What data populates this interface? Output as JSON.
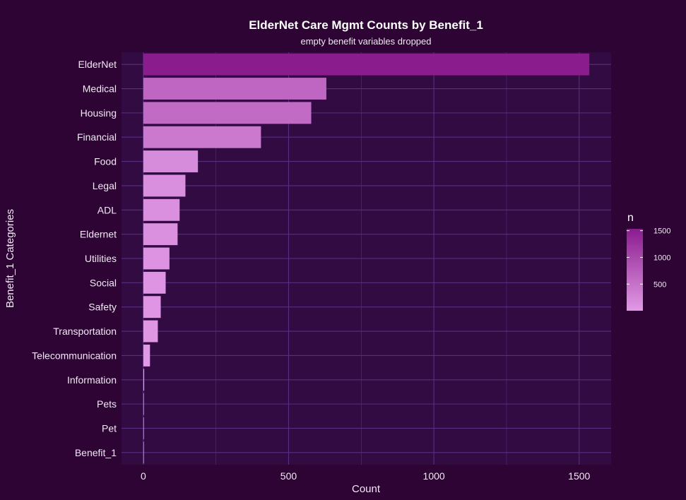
{
  "chart_data": {
    "type": "bar",
    "orientation": "horizontal",
    "title": "ElderNet Care Mgmt Counts by Benefit_1",
    "subtitle": "empty benefit variables dropped",
    "xlabel": "Count",
    "ylabel": "Benefit_1 Categories",
    "categories": [
      "ElderNet",
      "Medical",
      "Housing",
      "Financial",
      "Food",
      "Legal",
      "ADL",
      "Eldernet",
      "Utilities",
      "Social",
      "Safety",
      "Transportation",
      "Telecommunication",
      "Information",
      "Pets",
      "Pet",
      "Benefit_1"
    ],
    "values": [
      1535,
      630,
      578,
      405,
      188,
      145,
      125,
      118,
      90,
      77,
      60,
      50,
      23,
      3,
      2,
      2,
      1
    ],
    "xlim": [
      -75,
      1610
    ],
    "x_ticks": [
      0,
      500,
      1000,
      1500
    ],
    "x_tick_labels": [
      "0",
      "500",
      "1000",
      "1500"
    ],
    "grid": true,
    "legend": {
      "title": "n",
      "position": "right",
      "ticks": [
        500,
        1000,
        1500
      ],
      "tick_labels": [
        "500",
        "1000",
        "1500"
      ],
      "range": [
        1,
        1535
      ]
    },
    "colors": {
      "background": "#2d0434",
      "panel": "#320b42",
      "grid": "#5b2c81",
      "low": "#e29ae6",
      "high": "#8a1c8e"
    }
  }
}
